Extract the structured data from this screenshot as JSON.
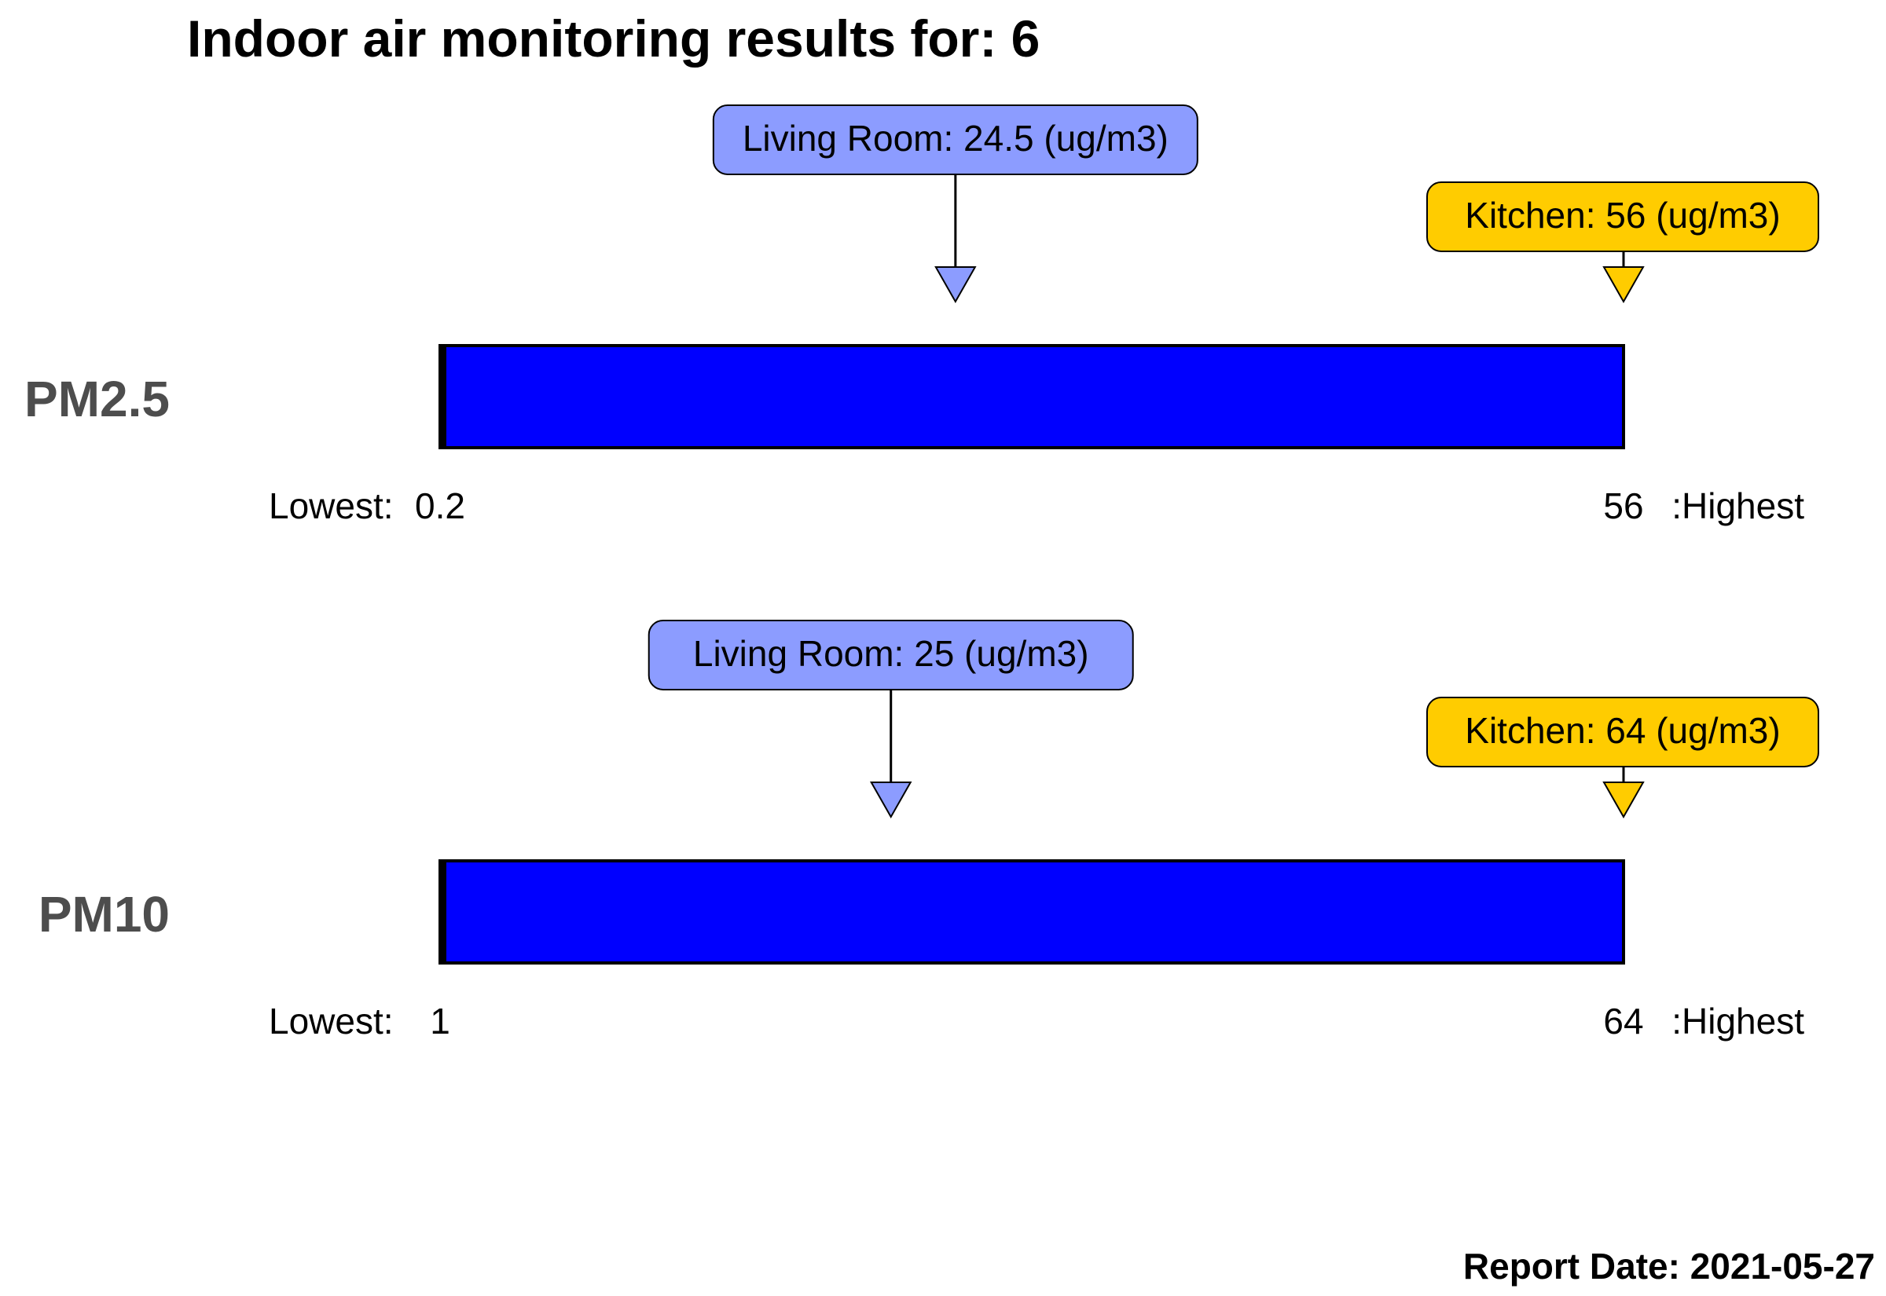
{
  "title": "Indoor air monitoring results for: 6",
  "report_date": "Report Date: 2021-05-27",
  "range_labels": {
    "lowest": "Lowest:",
    "highest": ":Highest"
  },
  "colors": {
    "bar": "#0000ff",
    "living_room": "#8c9cff",
    "kitchen": "#ffcc00"
  },
  "chart_data": [
    {
      "type": "bar",
      "pollutant": "PM2.5",
      "unit": "ug/m3",
      "min": 0.2,
      "max": 56,
      "min_label": "0.2",
      "max_label": "56",
      "markers": [
        {
          "room": "Living Room",
          "value": 24.5,
          "label": "Living Room: 24.5 (ug/m3)",
          "color": "#8c9cff"
        },
        {
          "room": "Kitchen",
          "value": 56,
          "label": "Kitchen: 56 (ug/m3)",
          "color": "#ffcc00"
        }
      ]
    },
    {
      "type": "bar",
      "pollutant": "PM10",
      "unit": "ug/m3",
      "min": 1,
      "max": 64,
      "min_label": "1",
      "max_label": "64",
      "markers": [
        {
          "room": "Living Room",
          "value": 25,
          "label": "Living Room: 25 (ug/m3)",
          "color": "#8c9cff"
        },
        {
          "room": "Kitchen",
          "value": 64,
          "label": "Kitchen: 64 (ug/m3)",
          "color": "#ffcc00"
        }
      ]
    }
  ]
}
